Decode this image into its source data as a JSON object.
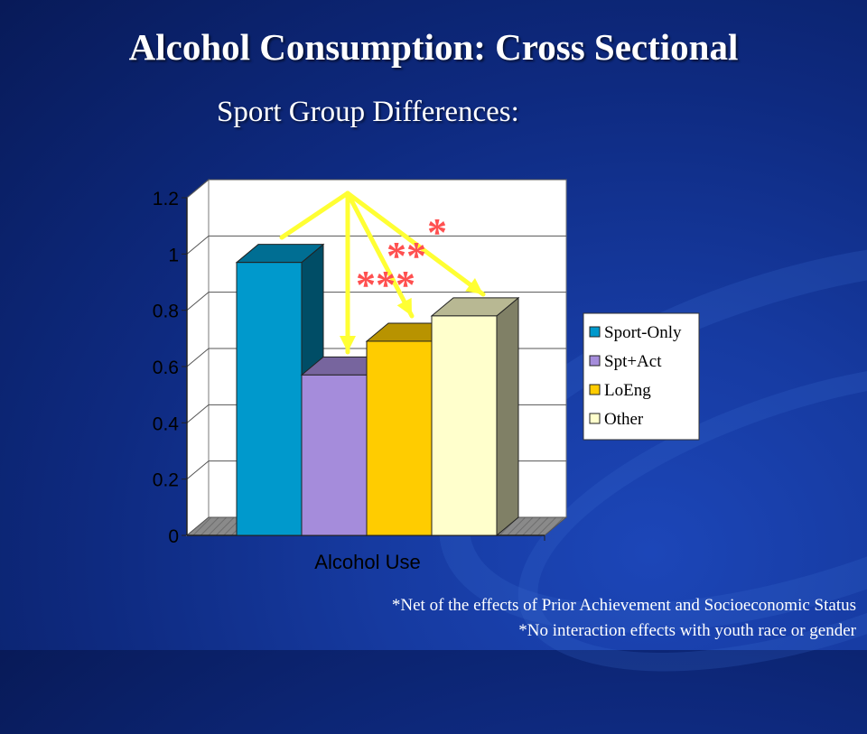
{
  "title": "Alcohol Consumption: Cross Sectional",
  "subtitle": "Sport Group Differences:",
  "notes": [
    "*Net of the effects of Prior Achievement and Socioeconomic Status",
    "*No interaction effects with youth race or gender"
  ],
  "chart_data": {
    "type": "bar",
    "categories": [
      "Alcohol Use"
    ],
    "series": [
      {
        "name": "Sport-Only",
        "values": [
          0.97
        ],
        "color": "#0099cc"
      },
      {
        "name": "Spt+Act",
        "values": [
          0.57
        ],
        "color": "#a58cdb"
      },
      {
        "name": "LoEng",
        "values": [
          0.69
        ],
        "color": "#ffcc00"
      },
      {
        "name": "Other",
        "values": [
          0.78
        ],
        "color": "#ffffcc"
      }
    ],
    "yticks": [
      "0",
      "0.2",
      "0.4",
      "0.6",
      "0.8",
      "1",
      "1.2"
    ],
    "ylim": [
      0,
      1.2
    ],
    "grid": true,
    "legend": "right",
    "annotations": [
      {
        "text": "***",
        "color": "#ff5050"
      },
      {
        "text": "**",
        "color": "#ff5050"
      },
      {
        "text": "*",
        "color": "#ff5050"
      }
    ],
    "arrow_color": "#ffff33"
  }
}
